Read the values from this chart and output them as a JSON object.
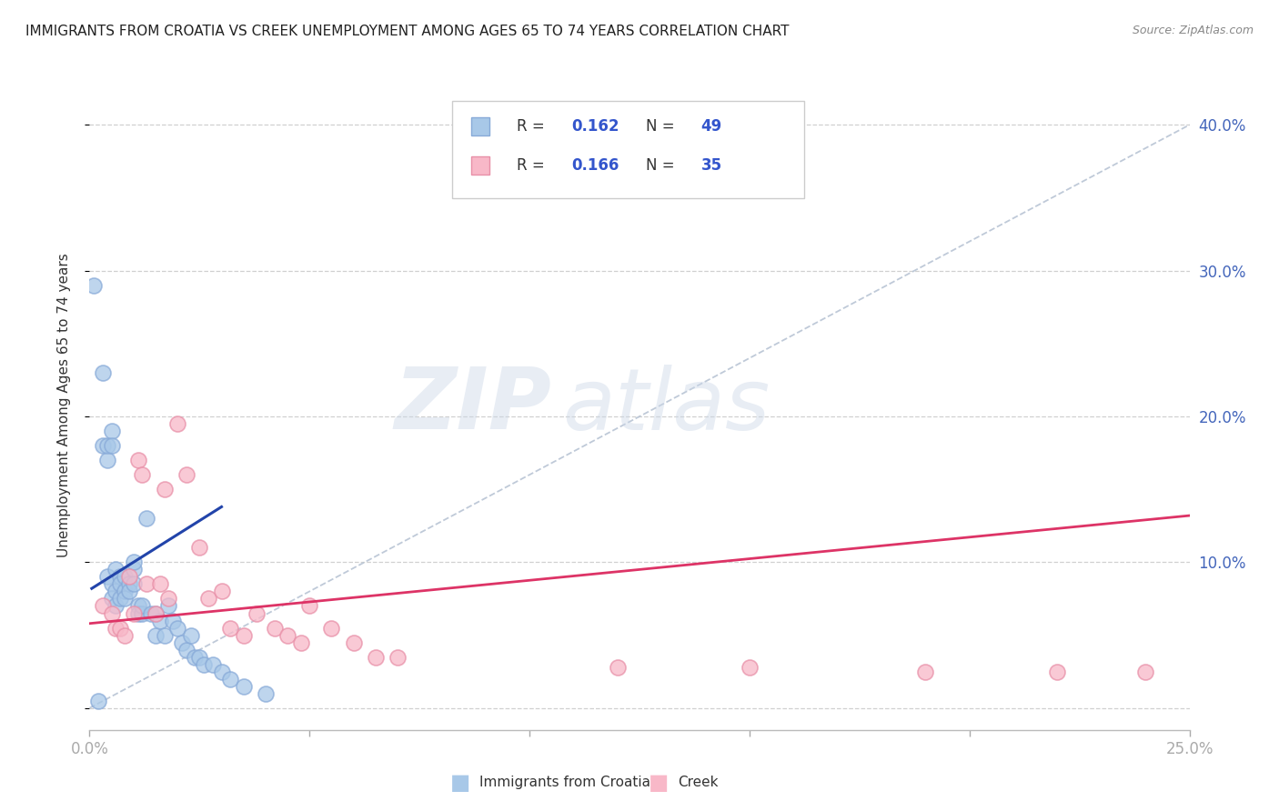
{
  "title": "IMMIGRANTS FROM CROATIA VS CREEK UNEMPLOYMENT AMONG AGES 65 TO 74 YEARS CORRELATION CHART",
  "source": "Source: ZipAtlas.com",
  "ylabel": "Unemployment Among Ages 65 to 74 years",
  "xlim": [
    0.0,
    0.25
  ],
  "ylim": [
    -0.015,
    0.43
  ],
  "xticks": [
    0.0,
    0.05,
    0.1,
    0.15,
    0.2,
    0.25
  ],
  "xticklabels": [
    "0.0%",
    "",
    "",
    "",
    "",
    "25.0%"
  ],
  "yticks_right": [
    0.0,
    0.1,
    0.2,
    0.3,
    0.4
  ],
  "yticks_right_labels": [
    "",
    "10.0%",
    "20.0%",
    "30.0%",
    "40.0%"
  ],
  "legend_r1": "0.162",
  "legend_n1": "49",
  "legend_r2": "0.166",
  "legend_n2": "35",
  "series1_color": "#a8c8e8",
  "series1_edge": "#88aad8",
  "series2_color": "#f8b8c8",
  "series2_edge": "#e890a8",
  "trendline1_color": "#2244aa",
  "trendline2_color": "#dd3366",
  "refline_color": "#b8c4d4",
  "watermark_color": "#ccd8e8",
  "blue_scatter_x": [
    0.001,
    0.002,
    0.003,
    0.003,
    0.004,
    0.004,
    0.004,
    0.005,
    0.005,
    0.005,
    0.005,
    0.006,
    0.006,
    0.006,
    0.007,
    0.007,
    0.007,
    0.008,
    0.008,
    0.008,
    0.009,
    0.009,
    0.01,
    0.01,
    0.01,
    0.011,
    0.011,
    0.012,
    0.012,
    0.013,
    0.014,
    0.015,
    0.015,
    0.016,
    0.017,
    0.018,
    0.019,
    0.02,
    0.021,
    0.022,
    0.023,
    0.024,
    0.025,
    0.026,
    0.028,
    0.03,
    0.032,
    0.035,
    0.04
  ],
  "blue_scatter_y": [
    0.29,
    0.005,
    0.23,
    0.18,
    0.17,
    0.18,
    0.09,
    0.19,
    0.18,
    0.085,
    0.075,
    0.095,
    0.08,
    0.07,
    0.09,
    0.085,
    0.075,
    0.09,
    0.08,
    0.075,
    0.085,
    0.08,
    0.095,
    0.1,
    0.085,
    0.07,
    0.065,
    0.065,
    0.07,
    0.13,
    0.065,
    0.065,
    0.05,
    0.06,
    0.05,
    0.07,
    0.06,
    0.055,
    0.045,
    0.04,
    0.05,
    0.035,
    0.035,
    0.03,
    0.03,
    0.025,
    0.02,
    0.015,
    0.01
  ],
  "pink_scatter_x": [
    0.003,
    0.005,
    0.006,
    0.007,
    0.008,
    0.009,
    0.01,
    0.011,
    0.012,
    0.013,
    0.015,
    0.016,
    0.017,
    0.018,
    0.02,
    0.022,
    0.025,
    0.027,
    0.03,
    0.032,
    0.035,
    0.038,
    0.042,
    0.045,
    0.048,
    0.05,
    0.055,
    0.06,
    0.065,
    0.07,
    0.12,
    0.15,
    0.19,
    0.22,
    0.24
  ],
  "pink_scatter_y": [
    0.07,
    0.065,
    0.055,
    0.055,
    0.05,
    0.09,
    0.065,
    0.17,
    0.16,
    0.085,
    0.065,
    0.085,
    0.15,
    0.075,
    0.195,
    0.16,
    0.11,
    0.075,
    0.08,
    0.055,
    0.05,
    0.065,
    0.055,
    0.05,
    0.045,
    0.07,
    0.055,
    0.045,
    0.035,
    0.035,
    0.028,
    0.028,
    0.025,
    0.025,
    0.025
  ],
  "trendline1_x": [
    0.0005,
    0.03
  ],
  "trendline1_y": [
    0.082,
    0.138
  ],
  "trendline2_x": [
    0.0,
    0.25
  ],
  "trendline2_y": [
    0.058,
    0.132
  ],
  "refline_x": [
    0.0,
    0.25
  ],
  "refline_y": [
    0.0,
    0.4
  ]
}
